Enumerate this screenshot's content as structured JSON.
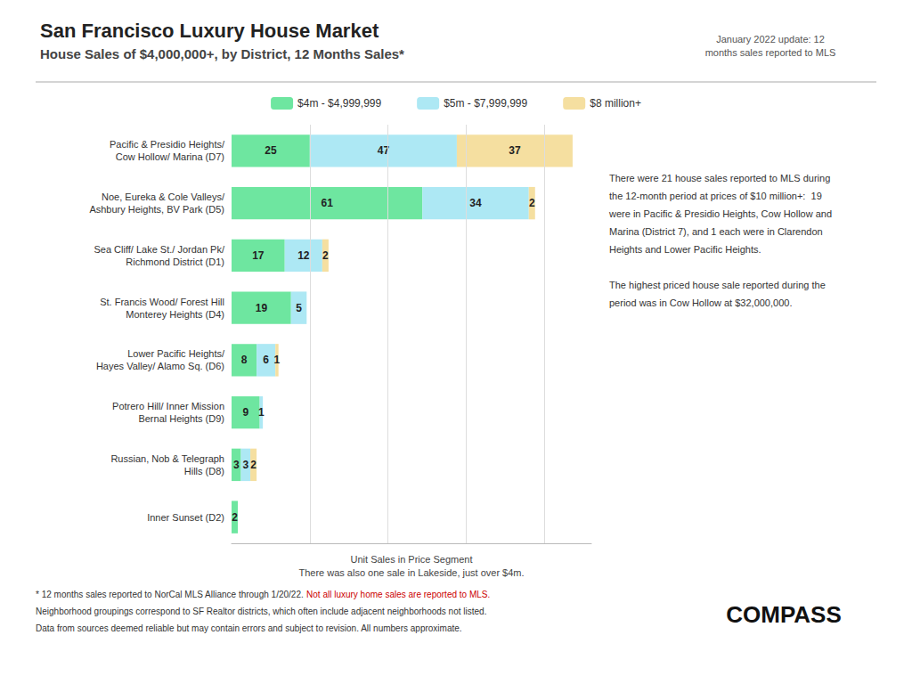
{
  "chart_data": {
    "type": "bar",
    "orientation": "horizontal",
    "stacked": true,
    "data_labels": true,
    "grid": true,
    "legend": "top",
    "tick_labels": "y",
    "title": "San Francisco Luxury House Market",
    "subtitle": "House Sales of $4,000,000+, by District, 12 Months Sales*",
    "update_note": "January 2022 update: 12\nmonths sales reported to MLS",
    "annotation": "There were 21 house sales reported to MLS during\nthe 12-month period at prices of $10 million+:  19\nwere in Pacific & Presidio Heights, Cow Hollow and\nMarina (District 7), and 1 each were in Clarendon\nHeights and Lower Pacific Heights.\n\nThe highest priced house sale reported during the\nperiod was in Cow Hollow at $32,000,000.",
    "unit_sales_label": "Unit Sales in Price Segment\nThere was also one sale in Lakeside, just over $4m.",
    "footnotes": [
      [
        {
          "text": "* 12 months sales reported to NorCal MLS Alliance through 1/20/22. "
        },
        {
          "text": "Not all luxury home sales are reported to MLS.",
          "color": "#CC0000"
        }
      ],
      [
        {
          "text": "Neighborhood groupings correspond to SF Realtor districts, which often include adjacent neighborhoods not listed."
        }
      ],
      [
        {
          "text": "Data from sources deemed reliable but may contain errors and subject to revision. All numbers approximate."
        }
      ]
    ],
    "logo": "COMPASS",
    "categories": [
      "Pacific & Presidio Heights/\nCow Hollow/ Marina (D7)",
      "Noe, Eureka & Cole Valleys/\nAshbury Heights, BV Park (D5)",
      "Sea Cliff/ Lake St./ Jordan Pk/\nRichmond District (D1)",
      "St. Francis Wood/ Forest Hill\nMonterey Heights (D4)",
      "Lower Pacific Heights/\nHayes Valley/ Alamo Sq. (D6)",
      "Potrero Hill/ Inner Mission\nBernal Heights (D9)",
      "Russian, Nob & Telegraph\nHills (D8)",
      "Inner Sunset (D2)"
    ],
    "series": [
      {
        "name": "$4m - $4,999,999",
        "color": "#6EE6A0",
        "values": [
          25,
          61,
          17,
          19,
          8,
          9,
          3,
          2
        ]
      },
      {
        "name": "$5m - $7,999,999",
        "color": "#ADE8F4",
        "values": [
          47,
          34,
          12,
          5,
          6,
          1,
          3,
          0
        ]
      },
      {
        "name": "$8 million+",
        "color": "#F5DFA0",
        "values": [
          37,
          2,
          2,
          0,
          1,
          0,
          2,
          0
        ]
      }
    ],
    "xlim": [
      0,
      115
    ],
    "xticks": [
      25,
      50,
      75,
      100
    ]
  }
}
